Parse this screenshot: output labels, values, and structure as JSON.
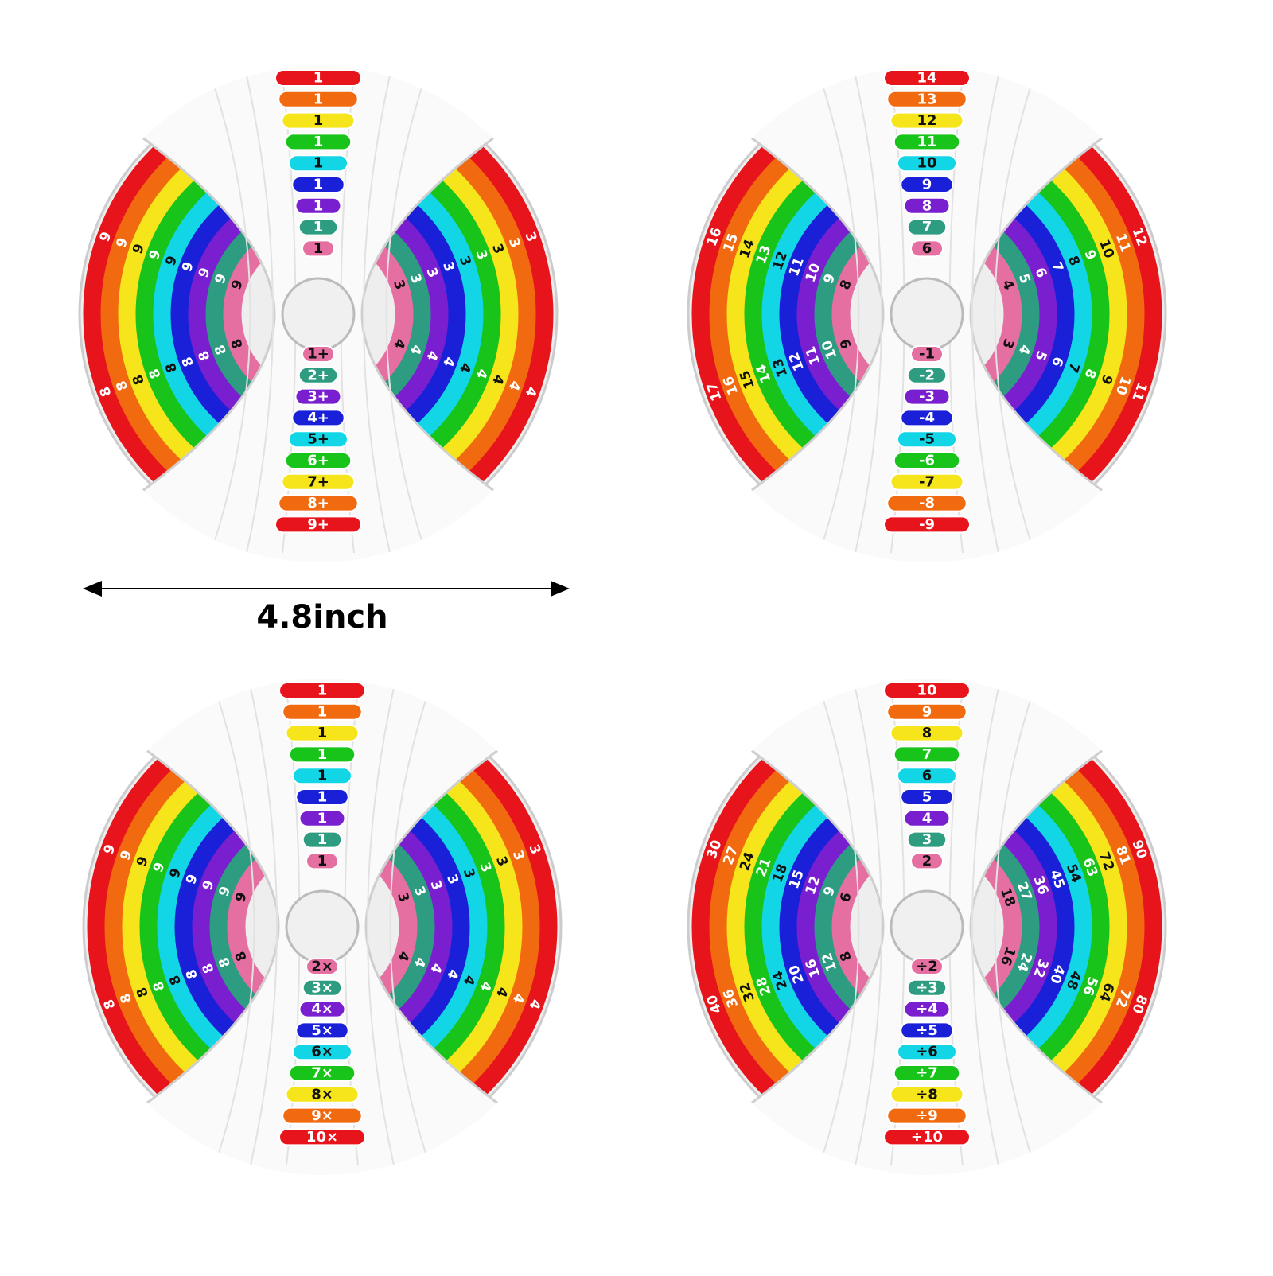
{
  "caption": "4.8inch",
  "ring_colors": [
    "#e8141c",
    "#f26a10",
    "#f5e51a",
    "#18c31a",
    "#12d6e6",
    "#1a20d8",
    "#7a1fd0",
    "#2e9c80",
    "#e56fa0"
  ],
  "wheels": [
    {
      "top_labels": [
        "1",
        "1",
        "1",
        "1",
        "1",
        "1",
        "1",
        "1",
        "1"
      ],
      "bottom_labels": [
        "1+",
        "2+",
        "3+",
        "4+",
        "5+",
        "6+",
        "7+",
        "8+",
        "9+"
      ],
      "left_upper": [
        "9",
        "9",
        "9",
        "9",
        "9",
        "9",
        "9",
        "9",
        "9"
      ],
      "left_lower": [
        "8",
        "8",
        "8",
        "8",
        "8",
        "8",
        "8",
        "8",
        "8"
      ],
      "right_upper": [
        "3",
        "3",
        "3",
        "3",
        "3",
        "3",
        "3",
        "3",
        "3"
      ],
      "right_lower": [
        "4",
        "4",
        "4",
        "4",
        "4",
        "4",
        "4",
        "4",
        "4"
      ]
    },
    {
      "top_labels": [
        "14",
        "13",
        "12",
        "11",
        "10",
        "9",
        "8",
        "7",
        "6"
      ],
      "bottom_labels": [
        "-1",
        "-2",
        "-3",
        "-4",
        "-5",
        "-6",
        "-7",
        "-8",
        "-9"
      ],
      "left_upper": [
        "16",
        "15",
        "14",
        "13",
        "12",
        "11",
        "10",
        "9",
        "8"
      ],
      "left_lower": [
        "17",
        "16",
        "15",
        "14",
        "13",
        "12",
        "11",
        "10",
        "9"
      ],
      "right_upper": [
        "12",
        "11",
        "10",
        "9",
        "8",
        "7",
        "6",
        "5",
        "4"
      ],
      "right_lower": [
        "11",
        "10",
        "9",
        "8",
        "7",
        "6",
        "5",
        "4",
        "3"
      ]
    },
    {
      "top_labels": [
        "1",
        "1",
        "1",
        "1",
        "1",
        "1",
        "1",
        "1",
        "1"
      ],
      "bottom_labels": [
        "2×",
        "3×",
        "4×",
        "5×",
        "6×",
        "7×",
        "8×",
        "9×",
        "10×"
      ],
      "left_upper": [
        "9",
        "9",
        "9",
        "9",
        "9",
        "9",
        "9",
        "9",
        "9"
      ],
      "left_lower": [
        "8",
        "8",
        "8",
        "8",
        "8",
        "8",
        "8",
        "8",
        "8"
      ],
      "right_upper": [
        "3",
        "3",
        "3",
        "3",
        "3",
        "3",
        "3",
        "3",
        "3"
      ],
      "right_lower": [
        "4",
        "4",
        "4",
        "4",
        "4",
        "4",
        "4",
        "4",
        "4"
      ]
    },
    {
      "top_labels": [
        "10",
        "9",
        "8",
        "7",
        "6",
        "5",
        "4",
        "3",
        "2"
      ],
      "bottom_labels": [
        "÷2",
        "÷3",
        "÷4",
        "÷5",
        "÷6",
        "÷7",
        "÷8",
        "÷9",
        "÷10"
      ],
      "left_upper": [
        "30",
        "27",
        "24",
        "21",
        "18",
        "15",
        "12",
        "9",
        "6"
      ],
      "left_lower": [
        "40",
        "36",
        "32",
        "28",
        "24",
        "20",
        "16",
        "12",
        "8"
      ],
      "right_upper": [
        "90",
        "81",
        "72",
        "63",
        "54",
        "45",
        "36",
        "27",
        "18"
      ],
      "right_lower": [
        "80",
        "72",
        "64",
        "56",
        "48",
        "40",
        "32",
        "24",
        "16"
      ]
    }
  ]
}
